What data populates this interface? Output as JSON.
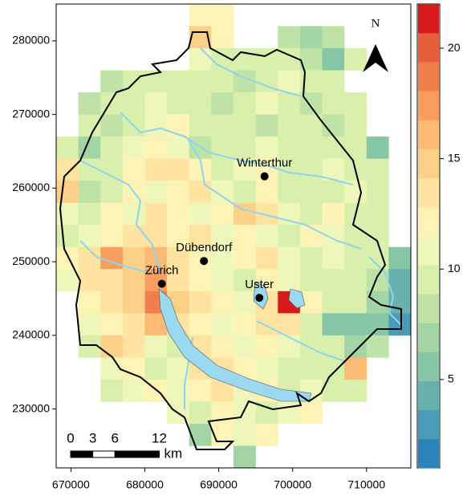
{
  "map": {
    "axes": {
      "xlim": [
        668000,
        716000
      ],
      "ylim": [
        222000,
        285000
      ],
      "xticks": [
        670000,
        680000,
        690000,
        700000,
        710000
      ],
      "yticks": [
        230000,
        240000,
        250000,
        260000,
        270000,
        280000
      ]
    },
    "grid": [
      [
        null,
        null,
        null,
        null,
        null,
        null,
        12,
        12,
        null,
        null,
        null,
        null,
        null,
        null,
        null,
        null
      ],
      [
        null,
        null,
        null,
        null,
        null,
        null,
        15,
        12,
        null,
        null,
        8,
        7,
        8,
        null,
        null,
        null
      ],
      [
        null,
        null,
        null,
        null,
        null,
        null,
        11,
        10,
        9,
        10,
        9,
        8,
        6,
        9,
        null,
        null
      ],
      [
        null,
        null,
        8,
        10,
        10,
        9,
        10,
        9,
        8,
        10,
        11,
        9,
        10,
        null,
        null,
        null
      ],
      [
        null,
        8,
        10,
        9,
        11,
        10,
        9,
        8,
        10,
        11,
        9,
        8,
        9,
        10,
        null,
        null
      ],
      [
        null,
        9,
        8,
        10,
        11,
        12,
        10,
        9,
        10,
        8,
        10,
        9,
        8,
        9,
        null,
        null
      ],
      [
        9,
        7,
        10,
        11,
        12,
        11,
        8,
        10,
        9,
        11,
        10,
        9,
        10,
        10,
        6,
        null
      ],
      [
        14,
        10,
        9,
        12,
        13,
        14,
        12,
        10,
        11,
        12,
        10,
        9,
        11,
        10,
        9,
        null
      ],
      [
        15,
        8,
        9,
        12,
        11,
        12,
        13,
        11,
        10,
        12,
        9,
        10,
        9,
        11,
        10,
        null
      ],
      [
        11,
        10,
        12,
        11,
        13,
        12,
        11,
        12,
        15,
        13,
        11,
        10,
        12,
        10,
        9,
        null
      ],
      [
        10,
        11,
        12,
        13,
        14,
        12,
        13,
        11,
        12,
        11,
        10,
        12,
        11,
        10,
        9,
        null
      ],
      [
        12,
        14,
        17,
        15,
        16,
        13,
        12,
        11,
        12,
        13,
        11,
        10,
        11,
        10,
        9,
        6
      ],
      [
        11,
        13,
        14,
        15,
        18,
        14,
        12,
        11,
        10,
        12,
        11,
        9,
        10,
        10,
        8,
        4
      ],
      [
        null,
        12,
        14,
        15,
        19,
        15,
        13,
        12,
        11,
        14,
        21,
        12,
        10,
        9,
        7,
        4
      ],
      [
        null,
        11,
        12,
        14,
        16,
        14,
        12,
        11,
        12,
        13,
        13,
        10,
        6,
        5,
        5,
        3
      ],
      [
        null,
        10,
        15,
        13,
        11,
        10,
        13,
        12,
        11,
        12,
        11,
        10,
        9,
        7,
        8,
        null
      ],
      [
        null,
        null,
        11,
        12,
        10,
        11,
        14,
        13,
        12,
        11,
        10,
        9,
        10,
        16,
        null,
        null
      ],
      [
        null,
        null,
        10,
        11,
        12,
        11,
        12,
        13,
        11,
        12,
        10,
        11,
        9,
        10,
        null,
        null
      ],
      [
        null,
        null,
        null,
        null,
        null,
        11,
        10,
        12,
        11,
        10,
        11,
        12,
        null,
        null,
        null,
        null
      ],
      [
        null,
        null,
        null,
        null,
        null,
        null,
        7,
        12,
        11,
        12,
        null,
        null,
        null,
        null,
        null,
        null
      ],
      [
        null,
        null,
        null,
        null,
        null,
        null,
        null,
        null,
        7,
        null,
        null,
        null,
        null,
        null,
        null,
        null
      ]
    ],
    "cities": [
      {
        "name": "Winterthur",
        "x": 696200,
        "y": 261600
      },
      {
        "name": "Dübendorf",
        "x": 688000,
        "y": 250100
      },
      {
        "name": "Zürich",
        "x": 682300,
        "y": 247000
      },
      {
        "name": "Uster",
        "x": 695500,
        "y": 245100
      }
    ],
    "colorbar": {
      "lim": [
        1,
        22
      ],
      "ticks": [
        5,
        10,
        15,
        20
      ],
      "palette": [
        "#2b83ba",
        "#4a9bb5",
        "#68b1ad",
        "#86c5a6",
        "#a3d4a5",
        "#bfe3a7",
        "#d9efac",
        "#eef7b9",
        "#fcf3b4",
        "#fee4a0",
        "#fdd08a",
        "#fdba74",
        "#f99e5f",
        "#f07f4e",
        "#e55f3f",
        "#d7191c"
      ]
    },
    "scale_bar": {
      "ticks": [
        0,
        3,
        6,
        12
      ],
      "unit": "km"
    },
    "north": "N"
  }
}
